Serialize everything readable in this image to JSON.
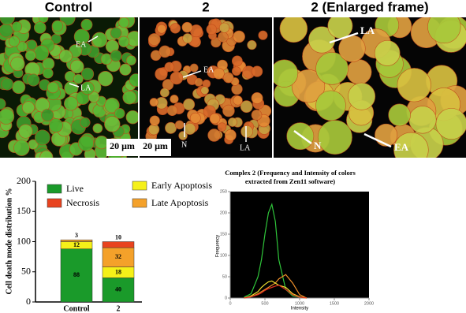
{
  "figure": {
    "panels": [
      {
        "title": "Control",
        "annotations": [
          "EA",
          "LA"
        ],
        "scale_bar": "20 μm"
      },
      {
        "title": "2",
        "annotations": [
          "EA",
          "N",
          "LA"
        ],
        "scale_bar": "20 μm"
      },
      {
        "title": "2 (Enlarged frame)",
        "annotations": [
          "LA",
          "N",
          "EA"
        ]
      }
    ]
  },
  "chart_data": [
    {
      "type": "stacked-bar",
      "ylabel": "Cell death mode distribution %",
      "categories": [
        "Control",
        "2"
      ],
      "series": [
        {
          "name": "Live",
          "color": "#1a9a2a",
          "values": [
            88,
            40
          ]
        },
        {
          "name": "Early Apoptosis",
          "color": "#f5f019",
          "values": [
            12,
            18
          ]
        },
        {
          "name": "Late Apoptosis",
          "color": "#f4a12a",
          "values": [
            3,
            32
          ]
        },
        {
          "name": "Necrosis",
          "color": "#e8431f",
          "values": [
            0,
            10
          ]
        }
      ],
      "ylim": [
        0,
        200
      ],
      "yticks": [
        0,
        50,
        100,
        150,
        200
      ]
    },
    {
      "type": "line",
      "title": "Complex 2 (Frequency and Intensity of colors extracted from Zen11 software)",
      "xlabel": "Intensity",
      "ylabel": "Frequency",
      "x": [
        200,
        300,
        400,
        450,
        500,
        550,
        600,
        650,
        700,
        800,
        900,
        1000,
        1100
      ],
      "series": [
        {
          "color": "#2fc53a",
          "values": [
            2,
            10,
            50,
            90,
            150,
            200,
            220,
            180,
            90,
            20,
            5,
            2,
            0
          ]
        },
        {
          "color": "#f0902a",
          "values": [
            0,
            3,
            10,
            15,
            20,
            25,
            30,
            35,
            45,
            55,
            35,
            8,
            0
          ]
        },
        {
          "color": "#f0e030",
          "values": [
            0,
            5,
            15,
            25,
            32,
            38,
            40,
            35,
            30,
            25,
            10,
            3,
            0
          ]
        },
        {
          "color": "#e03020",
          "values": [
            0,
            3,
            8,
            12,
            18,
            22,
            25,
            28,
            30,
            20,
            8,
            2,
            0
          ]
        }
      ],
      "xlim": [
        0,
        2000
      ],
      "xticks": [
        0,
        500,
        1000,
        1500,
        2000
      ],
      "ylim": [
        0,
        250
      ],
      "yticks": [
        0,
        50,
        100,
        150,
        200,
        250
      ]
    }
  ]
}
